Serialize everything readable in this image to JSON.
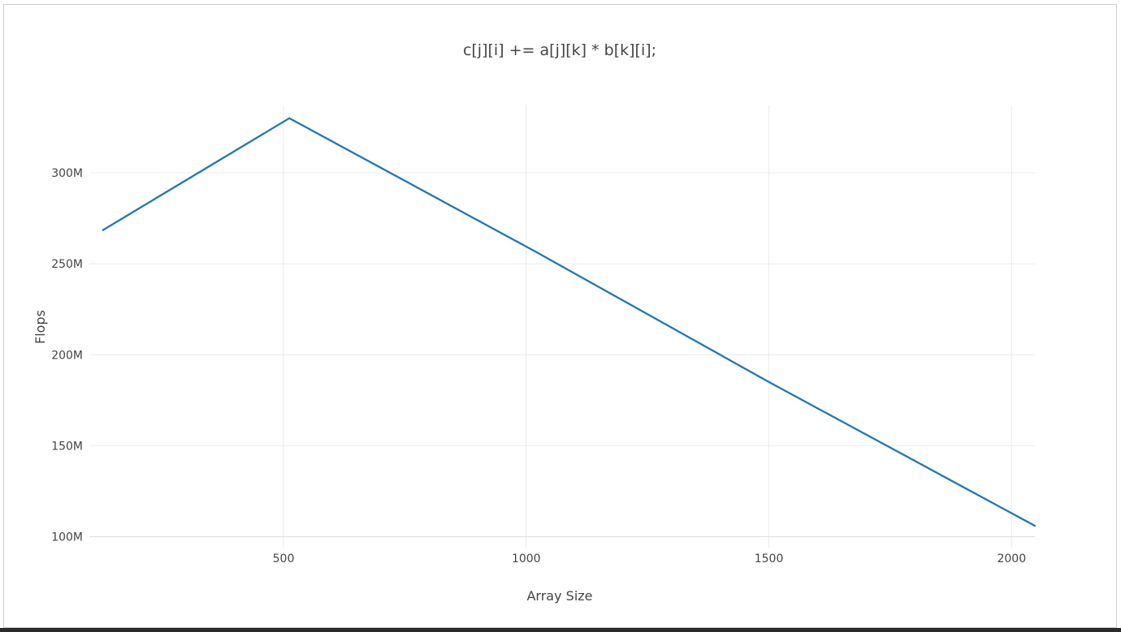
{
  "chart_data": {
    "type": "line",
    "title": "c[j][i] += a[j][k] * b[k][i];",
    "xlabel": "Array Size",
    "ylabel": "Flops",
    "xlim": [
      100,
      2048
    ],
    "ylim": [
      94000000,
      337000000
    ],
    "x_ticks": [
      500,
      1000,
      1500,
      2000
    ],
    "x_tick_labels": [
      "500",
      "1000",
      "1500",
      "2000"
    ],
    "y_ticks": [
      100000000,
      150000000,
      200000000,
      250000000,
      300000000
    ],
    "y_tick_labels": [
      "100M",
      "150M",
      "200M",
      "250M",
      "300M"
    ],
    "grid": true,
    "series": [
      {
        "color": "#1f77b4",
        "x": [
          128,
          512,
          1024,
          1500,
          2048
        ],
        "y": [
          268500000,
          330000000,
          256000000,
          185000000,
          106000000
        ]
      }
    ]
  }
}
